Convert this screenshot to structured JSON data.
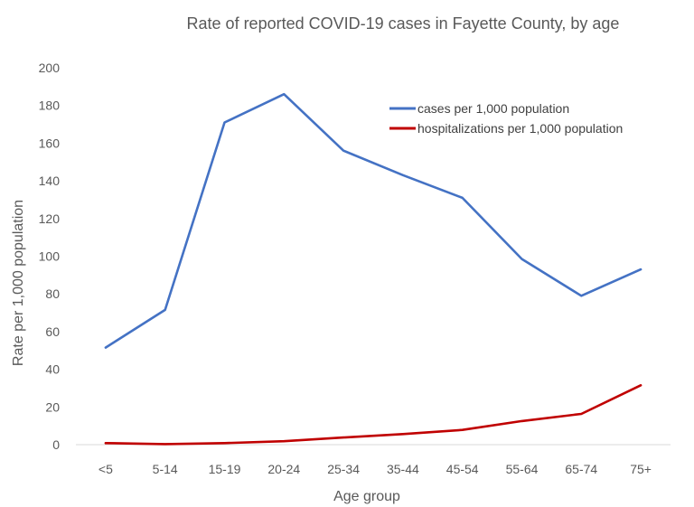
{
  "chart_data": {
    "type": "line",
    "title": "Rate of reported COVID-19 cases in Fayette County, by age",
    "xlabel": "Age group",
    "ylabel": "Rate per 1,000 population",
    "ylim": [
      0,
      200
    ],
    "yticks": [
      0,
      20,
      40,
      60,
      80,
      100,
      120,
      140,
      160,
      180,
      200
    ],
    "grid": false,
    "legend_position": "top-right",
    "categories": [
      "<5",
      "5-14",
      "15-19",
      "20-24",
      "25-34",
      "35-44",
      "45-54",
      "55-64",
      "65-74",
      "75+"
    ],
    "series": [
      {
        "name": "cases per 1,000 population",
        "color": "#4472c4",
        "values": [
          51.5,
          71.5,
          171,
          186,
          156,
          143,
          131,
          98.5,
          79,
          93
        ]
      },
      {
        "name": "hospitalizations per 1,000 population",
        "color": "#c00000",
        "values": [
          0.8,
          0.3,
          0.8,
          1.8,
          3.8,
          5.6,
          7.8,
          12.5,
          16.3,
          31.5
        ]
      }
    ]
  }
}
